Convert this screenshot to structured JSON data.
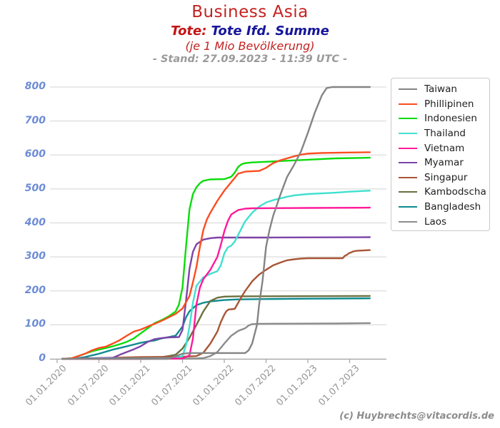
{
  "header": {
    "title": "Business Asia",
    "subtitle_prefix": "Tote:",
    "subtitle_main": "Tote Ifd. Summe",
    "subtitle_note": "(je 1 Mio Bevölkerung)",
    "stand_line": "- Stand: 27.09.2023 - 11:39 UTC -"
  },
  "footer": {
    "credit": "(c) Huybrechts@vitacordis.de"
  },
  "colors": {
    "title_red": "#c42222",
    "subtitle_red": "#c41414",
    "subtitle_blue": "#16169b",
    "stand_gray": "#9a9a9a",
    "ytick_blue": "#6d8cd6",
    "xtick_gray": "#979797",
    "grid_gray": "#dcdcdc",
    "axis_gray": "#ababab",
    "credit_gray": "#8c8c8c"
  },
  "chart_data": {
    "type": "line",
    "title": "Business Asia",
    "subtitle": "Tote: Tote Ifd. Summe (je 1 Mio Bevölkerung) - Stand: 27.09.2023 - 11:39 UTC -",
    "ylabel": "",
    "xlabel": "",
    "ylim": [
      0,
      800
    ],
    "grid": true,
    "legend_position": "upper right",
    "y_ticks": [
      0,
      100,
      200,
      300,
      400,
      500,
      600,
      700,
      800
    ],
    "x_ticks": [
      {
        "label": "01.01.2020",
        "month": 0
      },
      {
        "label": "01.07.2020",
        "month": 6
      },
      {
        "label": "01.01.2021",
        "month": 12
      },
      {
        "label": "01.07.2021",
        "month": 18
      },
      {
        "label": "01.01.2022",
        "month": 24
      },
      {
        "label": "01.07.2022",
        "month": 30
      },
      {
        "label": "01.01.2023",
        "month": 36
      },
      {
        "label": "01.07.2023",
        "month": 42
      }
    ],
    "x_unit": "months since 01.01.2020, data ends 27.09.2023 (month 44.9)",
    "value_unit": "cumulative deaths per 1 million population",
    "draw_order": [
      "Laos",
      "Bangladesh",
      "Kambodscha",
      "Singapur",
      "Myamar",
      "Thailand",
      "Vietnam",
      "Indonesien",
      "Phillipinen",
      "Taiwan"
    ],
    "series": [
      {
        "name": "Taiwan",
        "color": "#848484",
        "points": [
          [
            0.75,
            0
          ],
          [
            12,
            0
          ],
          [
            16,
            0
          ],
          [
            17,
            8
          ],
          [
            18,
            15
          ],
          [
            19,
            17
          ],
          [
            27,
            17
          ],
          [
            27.5,
            25
          ],
          [
            28,
            45
          ],
          [
            28.7,
            100
          ],
          [
            29,
            160
          ],
          [
            29.5,
            230
          ],
          [
            30,
            330
          ],
          [
            30.5,
            380
          ],
          [
            31,
            420
          ],
          [
            32,
            480
          ],
          [
            33,
            535
          ],
          [
            34,
            570
          ],
          [
            35,
            610
          ],
          [
            36,
            665
          ],
          [
            37,
            725
          ],
          [
            38,
            775
          ],
          [
            38.7,
            797
          ],
          [
            39.5,
            800
          ],
          [
            44.9,
            800
          ]
        ]
      },
      {
        "name": "Phillipinen",
        "color": "#fb4d1f",
        "points": [
          [
            0.75,
            0
          ],
          [
            2,
            1
          ],
          [
            3,
            8
          ],
          [
            4,
            15
          ],
          [
            5,
            25
          ],
          [
            6,
            32
          ],
          [
            7,
            36
          ],
          [
            8,
            45
          ],
          [
            9,
            55
          ],
          [
            10,
            68
          ],
          [
            11,
            80
          ],
          [
            12,
            86
          ],
          [
            13,
            95
          ],
          [
            14,
            103
          ],
          [
            15,
            112
          ],
          [
            16,
            122
          ],
          [
            17,
            132
          ],
          [
            18,
            148
          ],
          [
            19,
            185
          ],
          [
            19.5,
            225
          ],
          [
            20,
            270
          ],
          [
            20.5,
            330
          ],
          [
            21,
            380
          ],
          [
            21.5,
            410
          ],
          [
            22,
            430
          ],
          [
            23,
            465
          ],
          [
            24,
            495
          ],
          [
            25,
            520
          ],
          [
            26,
            545
          ],
          [
            27,
            551
          ],
          [
            28,
            552
          ],
          [
            29,
            553
          ],
          [
            30,
            562
          ],
          [
            31,
            576
          ],
          [
            32,
            584
          ],
          [
            33,
            590
          ],
          [
            34,
            596
          ],
          [
            35,
            601
          ],
          [
            36,
            604
          ],
          [
            38,
            606
          ],
          [
            41,
            607
          ],
          [
            44.9,
            608
          ]
        ]
      },
      {
        "name": "Indonesien",
        "color": "#0bdc0b",
        "points": [
          [
            0.75,
            0
          ],
          [
            2,
            1
          ],
          [
            3,
            8
          ],
          [
            4,
            15
          ],
          [
            5,
            22
          ],
          [
            6,
            27
          ],
          [
            7,
            32
          ],
          [
            8,
            37
          ],
          [
            9,
            43
          ],
          [
            10,
            50
          ],
          [
            11,
            60
          ],
          [
            12,
            75
          ],
          [
            13,
            90
          ],
          [
            14,
            105
          ],
          [
            15,
            114
          ],
          [
            16,
            125
          ],
          [
            17,
            139
          ],
          [
            17.5,
            160
          ],
          [
            18,
            210
          ],
          [
            18.5,
            330
          ],
          [
            19,
            440
          ],
          [
            19.5,
            485
          ],
          [
            20,
            505
          ],
          [
            20.5,
            517
          ],
          [
            21,
            524
          ],
          [
            22,
            528
          ],
          [
            24,
            529
          ],
          [
            25,
            536
          ],
          [
            25.5,
            548
          ],
          [
            26,
            565
          ],
          [
            26.5,
            573
          ],
          [
            27,
            576
          ],
          [
            28,
            578
          ],
          [
            30,
            580
          ],
          [
            33,
            583
          ],
          [
            36,
            586
          ],
          [
            40,
            590
          ],
          [
            44.9,
            592
          ]
        ]
      },
      {
        "name": "Thailand",
        "color": "#40e0d0",
        "points": [
          [
            0.75,
            0
          ],
          [
            6,
            1
          ],
          [
            12,
            1
          ],
          [
            17,
            2
          ],
          [
            18,
            8
          ],
          [
            18.5,
            40
          ],
          [
            19,
            95
          ],
          [
            19.5,
            165
          ],
          [
            20,
            215
          ],
          [
            21,
            240
          ],
          [
            22,
            250
          ],
          [
            23,
            258
          ],
          [
            23.5,
            275
          ],
          [
            24,
            310
          ],
          [
            24.5,
            328
          ],
          [
            25,
            333
          ],
          [
            25.5,
            345
          ],
          [
            26,
            365
          ],
          [
            26.5,
            385
          ],
          [
            27,
            405
          ],
          [
            28,
            430
          ],
          [
            29,
            448
          ],
          [
            30,
            460
          ],
          [
            31,
            467
          ],
          [
            32,
            472
          ],
          [
            33,
            477
          ],
          [
            34,
            481
          ],
          [
            36,
            485
          ],
          [
            38,
            487
          ],
          [
            40,
            489
          ],
          [
            42,
            492
          ],
          [
            44,
            494
          ],
          [
            44.9,
            495
          ]
        ]
      },
      {
        "name": "Vietnam",
        "color": "#ff1a99",
        "points": [
          [
            0.75,
            0
          ],
          [
            12,
            0
          ],
          [
            18,
            1
          ],
          [
            19,
            10
          ],
          [
            19.5,
            60
          ],
          [
            20,
            160
          ],
          [
            20.5,
            210
          ],
          [
            21,
            235
          ],
          [
            22,
            262
          ],
          [
            23,
            300
          ],
          [
            23.5,
            335
          ],
          [
            24,
            375
          ],
          [
            24.5,
            405
          ],
          [
            25,
            425
          ],
          [
            26,
            438
          ],
          [
            27,
            442
          ],
          [
            28,
            443
          ],
          [
            36,
            444
          ],
          [
            44.9,
            445
          ]
        ]
      },
      {
        "name": "Myamar",
        "color": "#7c44a8",
        "points": [
          [
            0.75,
            0
          ],
          [
            8,
            3
          ],
          [
            9,
            12
          ],
          [
            10,
            20
          ],
          [
            11,
            28
          ],
          [
            12,
            37
          ],
          [
            13,
            50
          ],
          [
            14,
            58
          ],
          [
            15,
            61
          ],
          [
            16,
            63
          ],
          [
            17.5,
            64
          ],
          [
            18,
            85
          ],
          [
            18.5,
            170
          ],
          [
            19,
            265
          ],
          [
            19.5,
            315
          ],
          [
            20,
            337
          ],
          [
            21,
            351
          ],
          [
            22,
            355
          ],
          [
            23,
            357
          ],
          [
            30,
            357
          ],
          [
            44.9,
            358
          ]
        ]
      },
      {
        "name": "Singapur",
        "color": "#a85636",
        "points": [
          [
            0.75,
            0
          ],
          [
            6,
            2
          ],
          [
            12,
            5
          ],
          [
            18,
            6
          ],
          [
            20,
            8
          ],
          [
            21,
            18
          ],
          [
            22,
            45
          ],
          [
            23,
            80
          ],
          [
            23.5,
            108
          ],
          [
            24,
            130
          ],
          [
            24.3,
            140
          ],
          [
            24.6,
            145
          ],
          [
            25.5,
            147
          ],
          [
            26,
            165
          ],
          [
            26.5,
            183
          ],
          [
            27,
            200
          ],
          [
            28,
            228
          ],
          [
            29,
            248
          ],
          [
            30,
            262
          ],
          [
            31,
            275
          ],
          [
            32,
            283
          ],
          [
            33,
            290
          ],
          [
            34,
            293
          ],
          [
            35,
            295
          ],
          [
            36,
            296
          ],
          [
            41,
            296
          ],
          [
            41.3,
            303
          ],
          [
            41.6,
            306
          ],
          [
            41.9,
            311
          ],
          [
            42.2,
            313
          ],
          [
            42.5,
            316
          ],
          [
            43,
            318
          ],
          [
            44,
            319
          ],
          [
            44.9,
            320
          ]
        ]
      },
      {
        "name": "Kambodscha",
        "color": "#6c7040",
        "points": [
          [
            0.75,
            0
          ],
          [
            12,
            1
          ],
          [
            14,
            2
          ],
          [
            15,
            5
          ],
          [
            16,
            8
          ],
          [
            17,
            12
          ],
          [
            18,
            30
          ],
          [
            19,
            62
          ],
          [
            20,
            100
          ],
          [
            21,
            140
          ],
          [
            22,
            170
          ],
          [
            23,
            180
          ],
          [
            24,
            183
          ],
          [
            26,
            184
          ],
          [
            44.9,
            185
          ]
        ]
      },
      {
        "name": "Bangladesh",
        "color": "#0f8b8f",
        "points": [
          [
            0.75,
            0
          ],
          [
            3,
            2
          ],
          [
            4,
            5
          ],
          [
            5,
            10
          ],
          [
            6,
            15
          ],
          [
            7,
            21
          ],
          [
            8,
            27
          ],
          [
            9,
            32
          ],
          [
            10,
            37
          ],
          [
            11,
            42
          ],
          [
            12,
            47
          ],
          [
            13,
            51
          ],
          [
            14,
            54
          ],
          [
            15,
            60
          ],
          [
            16,
            64
          ],
          [
            17,
            68
          ],
          [
            18,
            95
          ],
          [
            18.5,
            122
          ],
          [
            19,
            140
          ],
          [
            20,
            158
          ],
          [
            21,
            165
          ],
          [
            22,
            169
          ],
          [
            23,
            171
          ],
          [
            24,
            173
          ],
          [
            26,
            175
          ],
          [
            30,
            176
          ],
          [
            36,
            177
          ],
          [
            44.9,
            178
          ]
        ]
      },
      {
        "name": "Laos",
        "color": "#8c8c8c",
        "points": [
          [
            0.75,
            0
          ],
          [
            12,
            0
          ],
          [
            20,
            1
          ],
          [
            21,
            2
          ],
          [
            22,
            8
          ],
          [
            23,
            20
          ],
          [
            24,
            45
          ],
          [
            25,
            68
          ],
          [
            26,
            82
          ],
          [
            26.5,
            86
          ],
          [
            27,
            90
          ],
          [
            27.5,
            98
          ],
          [
            28,
            102
          ],
          [
            29,
            103
          ],
          [
            40,
            104
          ],
          [
            44.9,
            105
          ]
        ]
      }
    ]
  }
}
